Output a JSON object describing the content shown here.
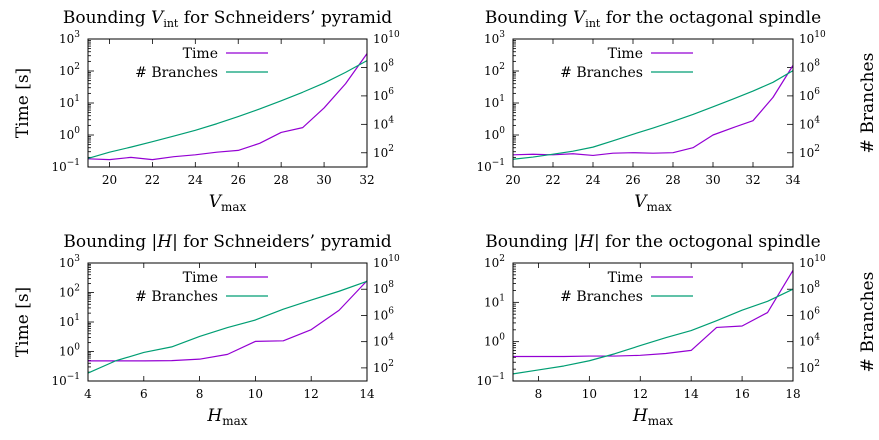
{
  "colors": {
    "time": "#9400d3",
    "branches": "#009e73"
  },
  "chart_data": [
    {
      "type": "line",
      "title_pre": "Bounding ",
      "title_sym": "V",
      "title_sub": "int",
      "title_post": " for Schneiders’ pyramid",
      "xlabel_sym": "V",
      "xlabel_sub": "max",
      "ylabel": "Time [s]",
      "y2label": "",
      "xlim": [
        19,
        32
      ],
      "x_ticks": [
        20,
        22,
        24,
        26,
        28,
        30,
        32
      ],
      "y_scale": "log",
      "ylim": [
        0.1,
        1000
      ],
      "y_ticks": [
        "10",
        "10",
        "10",
        "10",
        "10"
      ],
      "y_tick_exps": [
        "−1",
        "0",
        "1",
        "2",
        "3"
      ],
      "y_tick_labels": [
        "10⁻¹",
        "10⁰",
        "10¹",
        "10²",
        "10³"
      ],
      "y2_scale": "log",
      "y2lim": [
        10,
        10000000000
      ],
      "y2_tick_bases": [
        "10",
        "10",
        "10",
        "10",
        "10"
      ],
      "y2_tick_exps": [
        "2",
        "4",
        "6",
        "8",
        "10"
      ],
      "legend": "top-left",
      "series": [
        {
          "name": "Time",
          "axis": "y",
          "x": [
            19,
            20,
            21,
            22,
            23,
            24,
            25,
            26,
            27,
            28,
            29,
            30,
            31,
            32
          ],
          "values": [
            0.18,
            0.17,
            0.2,
            0.17,
            0.21,
            0.24,
            0.29,
            0.33,
            0.55,
            1.2,
            1.7,
            7,
            40,
            350
          ]
        },
        {
          "name": "# Branches",
          "axis": "y2",
          "x": [
            19,
            20,
            21,
            22,
            23,
            24,
            25,
            26,
            27,
            28,
            29,
            30,
            31,
            32
          ],
          "values": [
            40,
            110,
            250,
            600,
            1500,
            3800,
            11000,
            35000,
            120000,
            450000,
            1800000,
            8000000,
            45000000,
            300000000
          ]
        }
      ]
    },
    {
      "type": "line",
      "title_pre": "Bounding ",
      "title_sym": "V",
      "title_sub": "int",
      "title_post": " for the octagonal spindle",
      "xlabel_sym": "V",
      "xlabel_sub": "max",
      "ylabel": "",
      "y2label": "# Branches",
      "xlim": [
        20,
        34
      ],
      "x_ticks": [
        20,
        22,
        24,
        26,
        28,
        30,
        32,
        34
      ],
      "y_scale": "log",
      "ylim": [
        0.1,
        1000
      ],
      "y_tick_exps": [
        "−1",
        "0",
        "1",
        "2",
        "3"
      ],
      "y2_scale": "log",
      "y2lim": [
        10,
        10000000000
      ],
      "y2_tick_exps": [
        "2",
        "4",
        "6",
        "8",
        "10"
      ],
      "legend": "top-left",
      "series": [
        {
          "name": "Time",
          "axis": "y",
          "x": [
            20,
            21,
            22,
            23,
            24,
            25,
            26,
            27,
            28,
            29,
            30,
            31,
            32,
            33,
            34
          ],
          "values": [
            0.24,
            0.25,
            0.24,
            0.26,
            0.23,
            0.27,
            0.28,
            0.27,
            0.28,
            0.4,
            1,
            1.7,
            2.8,
            15,
            150
          ]
        },
        {
          "name": "# Branches",
          "axis": "y2",
          "x": [
            20,
            21,
            22,
            23,
            24,
            25,
            26,
            27,
            28,
            29,
            30,
            31,
            32,
            33,
            34
          ],
          "values": [
            35,
            50,
            80,
            130,
            250,
            700,
            2000,
            5500,
            16000,
            50000,
            170000,
            600000,
            2200000,
            9000000,
            60000000
          ]
        }
      ]
    },
    {
      "type": "line",
      "title_pre": "Bounding |",
      "title_sym": "H",
      "title_sub": "",
      "title_post": "| for Schneiders’ pyramid",
      "xlabel_sym": "H",
      "xlabel_sub": "max",
      "ylabel": "Time [s]",
      "y2label": "",
      "xlim": [
        4,
        14
      ],
      "x_ticks": [
        4,
        6,
        8,
        10,
        12,
        14
      ],
      "y_scale": "log",
      "ylim": [
        0.1,
        1000
      ],
      "y_tick_exps": [
        "−1",
        "0",
        "1",
        "2",
        "3"
      ],
      "y2_scale": "log",
      "y2lim": [
        10,
        10000000000
      ],
      "y2_tick_exps": [
        "2",
        "4",
        "6",
        "8",
        "10"
      ],
      "legend": "top-left",
      "series": [
        {
          "name": "Time",
          "axis": "y",
          "x": [
            4,
            5,
            6,
            7,
            8,
            9,
            10,
            11,
            12,
            13,
            14
          ],
          "values": [
            0.48,
            0.48,
            0.48,
            0.49,
            0.55,
            0.8,
            2.2,
            2.3,
            5.5,
            25,
            250
          ]
        },
        {
          "name": "# Branches",
          "axis": "y2",
          "x": [
            4,
            5,
            6,
            7,
            8,
            9,
            10,
            11,
            12,
            13,
            14
          ],
          "values": [
            40,
            350,
            1500,
            4000,
            25000,
            120000,
            450000,
            3000000,
            15000000,
            70000000,
            400000000
          ]
        }
      ]
    },
    {
      "type": "line",
      "title_pre": "Bounding |",
      "title_sym": "H",
      "title_sub": "",
      "title_post": "| for the octogonal spindle",
      "xlabel_sym": "H",
      "xlabel_sub": "max",
      "ylabel": "",
      "y2label": "# Branches",
      "xlim": [
        7,
        18
      ],
      "x_ticks": [
        8,
        10,
        12,
        14,
        16,
        18
      ],
      "y_scale": "log",
      "ylim": [
        0.1,
        100
      ],
      "y_tick_exps": [
        "−1",
        "0",
        "1",
        "2"
      ],
      "y2_scale": "log",
      "y2lim": [
        10,
        10000000000
      ],
      "y2_tick_exps": [
        "2",
        "4",
        "6",
        "8",
        "10"
      ],
      "legend": "top-left",
      "series": [
        {
          "name": "Time",
          "axis": "y",
          "x": [
            7,
            8,
            9,
            10,
            11,
            12,
            13,
            14,
            15,
            16,
            17,
            18
          ],
          "values": [
            0.42,
            0.42,
            0.42,
            0.43,
            0.43,
            0.45,
            0.5,
            0.6,
            2.3,
            2.5,
            5.5,
            65
          ]
        },
        {
          "name": "# Branches",
          "axis": "y2",
          "x": [
            7,
            8,
            9,
            10,
            11,
            12,
            13,
            14,
            15,
            16,
            17,
            18
          ],
          "values": [
            35,
            70,
            140,
            350,
            1200,
            5000,
            20000,
            70000,
            400000,
            2500000,
            12000000,
            100000000
          ]
        }
      ]
    }
  ]
}
